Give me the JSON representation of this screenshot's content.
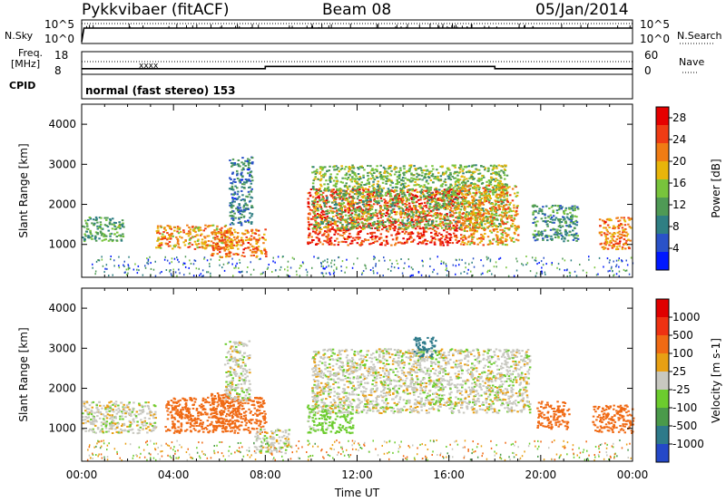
{
  "header": {
    "station": "Pykkvibaer (fitACF)",
    "beam": "Beam 08",
    "date": "05/Jan/2014"
  },
  "status_panel": {
    "nsky_label": "N.Sky",
    "nsearch_label": "N.Search",
    "freq_label": "Freq.",
    "freq_unit": "[MHz]",
    "nave_label": "Nave",
    "cpid_label": "CPID",
    "cpid_value": "normal (fast stereo) 153",
    "noise_ticks_left": [
      "10^5",
      "10^0"
    ],
    "noise_ticks_right": [
      "10^5",
      "10^0"
    ],
    "freq_ticks": [
      "18",
      "8"
    ],
    "nave_ticks": [
      "60",
      "0"
    ]
  },
  "chart_data": [
    {
      "type": "line",
      "panel": "noise",
      "series": [
        {
          "name": "N.Sky",
          "style": "solid",
          "x_hours": [
            0,
            0.1,
            24
          ],
          "y": [
            1,
            90000,
            90000
          ]
        },
        {
          "name": "N.Search",
          "style": "dotted",
          "x_hours": [
            0,
            24
          ],
          "y": [
            100000,
            100000
          ]
        }
      ]
    },
    {
      "type": "line",
      "panel": "frequency",
      "series": [
        {
          "name": "Freq.",
          "style": "solid",
          "x_hours": [
            0,
            8,
            8,
            18,
            18,
            24
          ],
          "y_mhz": [
            10.5,
            10.5,
            11.5,
            11.5,
            10.5,
            10.5
          ]
        },
        {
          "name": "Nave",
          "style": "dotted",
          "x_hours": [
            0,
            24
          ],
          "y": [
            24,
            24
          ]
        }
      ]
    },
    {
      "type": "heatmap",
      "title": "Power",
      "x_label": "Time UT",
      "y_label": "Slant Range [km]",
      "y_ticks": [
        "1000",
        "2000",
        "3000",
        "4000"
      ],
      "xlim_hours": [
        0,
        24
      ],
      "ylim_km": [
        180,
        4500
      ],
      "colorbar": {
        "label": "Power [dB]",
        "range": [
          0,
          30
        ],
        "ticks": [
          "4",
          "8",
          "12",
          "16",
          "20",
          "24",
          "28"
        ],
        "colors": [
          "#0018ff",
          "#2a52c8",
          "#2f7f83",
          "#4f9a55",
          "#78c43c",
          "#e8b50a",
          "#f07c14",
          "#ef3c14",
          "#e60000"
        ]
      },
      "echo_regions": [
        {
          "t0": 0.0,
          "t1": 1.8,
          "r0": 1100,
          "r1": 1700,
          "power": 12
        },
        {
          "t0": 3.2,
          "t1": 6.6,
          "r0": 900,
          "r1": 1500,
          "power": 20
        },
        {
          "t0": 5.6,
          "t1": 8.0,
          "r0": 700,
          "r1": 1400,
          "power": 22
        },
        {
          "t0": 6.4,
          "t1": 7.4,
          "r0": 1500,
          "r1": 3200,
          "power": 8
        },
        {
          "t0": 9.8,
          "t1": 16.5,
          "r0": 1000,
          "r1": 2400,
          "power": 26
        },
        {
          "t0": 10.0,
          "t1": 18.5,
          "r0": 1400,
          "r1": 3000,
          "power": 14
        },
        {
          "t0": 16.5,
          "t1": 19.0,
          "r0": 1000,
          "r1": 2500,
          "power": 20
        },
        {
          "t0": 19.6,
          "t1": 21.6,
          "r0": 1100,
          "r1": 2000,
          "power": 10
        },
        {
          "t0": 22.5,
          "t1": 23.9,
          "r0": 900,
          "r1": 1700,
          "power": 22
        }
      ]
    },
    {
      "type": "heatmap",
      "title": "Velocity",
      "x_label": "Time UT",
      "y_label": "Slant Range [km]",
      "x_ticks": [
        "00:00",
        "04:00",
        "08:00",
        "12:00",
        "16:00",
        "20:00",
        "00:00"
      ],
      "y_ticks": [
        "1000",
        "2000",
        "3000",
        "4000"
      ],
      "xlim_hours": [
        0,
        24
      ],
      "ylim_km": [
        180,
        4500
      ],
      "colorbar": {
        "label": "Velocity [m s-1]",
        "ticks": [
          "1000",
          "500",
          "100",
          "25",
          "-25",
          "-100",
          "-500",
          "-1000"
        ],
        "colors": [
          "#2448c8",
          "#2e7a8a",
          "#4a9a4a",
          "#6ccc2e",
          "#c8c8c0",
          "#e8a014",
          "#f06a14",
          "#ee3212",
          "#e00000"
        ]
      },
      "echo_regions": [
        {
          "t0": 0.0,
          "t1": 3.2,
          "r0": 900,
          "r1": 1700,
          "velocity": 0
        },
        {
          "t0": 3.6,
          "t1": 8.0,
          "r0": 900,
          "r1": 1800,
          "velocity": -150
        },
        {
          "t0": 5.6,
          "t1": 6.8,
          "r0": 1000,
          "r1": 1900,
          "velocity": -400
        },
        {
          "t0": 6.2,
          "t1": 7.3,
          "r0": 1700,
          "r1": 3200,
          "velocity": 0
        },
        {
          "t0": 7.5,
          "t1": 9.0,
          "r0": 400,
          "r1": 1000,
          "velocity": 0
        },
        {
          "t0": 9.8,
          "t1": 11.8,
          "r0": 900,
          "r1": 1600,
          "velocity": 60
        },
        {
          "t0": 10.0,
          "t1": 19.5,
          "r0": 1400,
          "r1": 3000,
          "velocity": 0
        },
        {
          "t0": 14.4,
          "t1": 15.4,
          "r0": 2800,
          "r1": 3300,
          "velocity": 700
        },
        {
          "t0": 19.8,
          "t1": 21.2,
          "r0": 1000,
          "r1": 1700,
          "velocity": -300
        },
        {
          "t0": 22.2,
          "t1": 24.0,
          "r0": 900,
          "r1": 1600,
          "velocity": -200
        }
      ]
    }
  ]
}
